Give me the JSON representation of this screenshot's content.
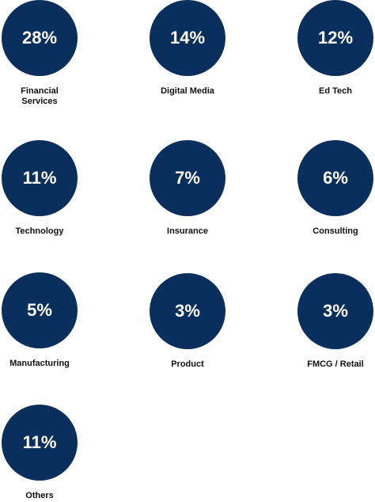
{
  "chart_data": {
    "type": "table",
    "items": [
      {
        "label": "Financial Services",
        "label_lines": [
          "Financial",
          "Services"
        ],
        "value": "28%"
      },
      {
        "label": "Digital Media",
        "label_lines": [
          "Digital Media"
        ],
        "value": "14%"
      },
      {
        "label": "Ed Tech",
        "label_lines": [
          "Ed Tech"
        ],
        "value": "12%"
      },
      {
        "label": "Technology",
        "label_lines": [
          "Technology"
        ],
        "value": "11%"
      },
      {
        "label": "Insurance",
        "label_lines": [
          "Insurance"
        ],
        "value": "7%"
      },
      {
        "label": "Consulting",
        "label_lines": [
          "Consulting"
        ],
        "value": "6%"
      },
      {
        "label": "Manufacturing",
        "label_lines": [
          "Manufacturing"
        ],
        "value": "5%"
      },
      {
        "label": "Product",
        "label_lines": [
          "Product"
        ],
        "value": "3%"
      },
      {
        "label": "FMCG / Retail",
        "label_lines": [
          "FMCG / Retail"
        ],
        "value": "3%"
      },
      {
        "label": "Others",
        "label_lines": [
          "Others"
        ],
        "value": "11%"
      }
    ],
    "colors": {
      "circle": "#0b2f5c",
      "value_text": "#ffffff",
      "label_text": "#111111"
    }
  }
}
